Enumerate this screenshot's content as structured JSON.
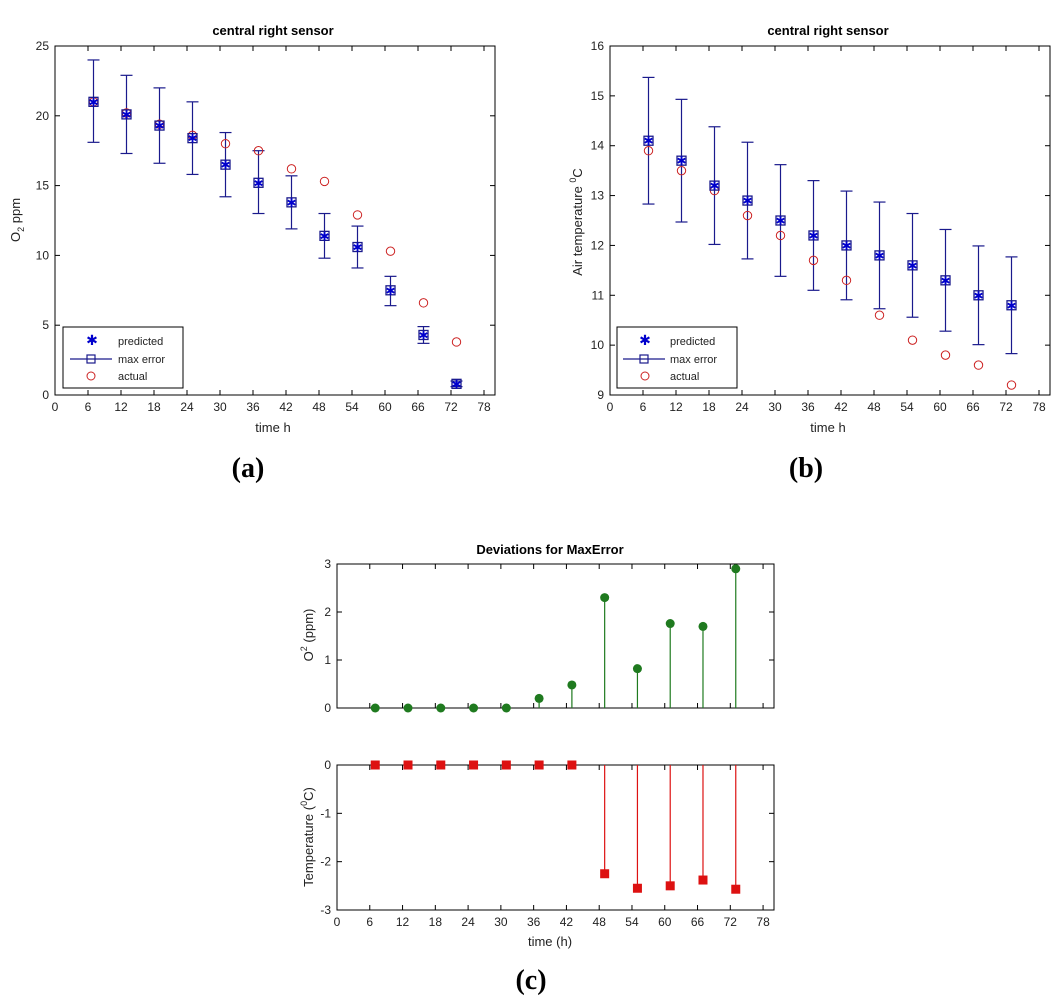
{
  "captions": {
    "a": "(a)",
    "b": "(b)",
    "c": "(c)"
  },
  "legend": {
    "predicted": "predicted",
    "max_error": "max error",
    "actual": "actual"
  },
  "colors": {
    "axis": "#000000",
    "errorbar": "#1a1a8c",
    "predicted": "#0000cc",
    "actual": "#cc2222",
    "stem_o2": "#1f7a1f",
    "stem_temp": "#dd1111"
  },
  "chart_data": [
    {
      "id": "a",
      "type": "scatter",
      "title": "central right sensor",
      "xlabel": "time h",
      "ylabel_main": "O",
      "ylabel_sub": "2",
      "ylabel_tail": " ppm",
      "xlim": [
        0,
        80
      ],
      "ylim": [
        0,
        25
      ],
      "xticks": [
        0,
        6,
        12,
        18,
        24,
        30,
        36,
        42,
        48,
        54,
        60,
        66,
        72,
        78
      ],
      "yticks": [
        0,
        5,
        10,
        15,
        20,
        25
      ],
      "x": [
        7,
        13,
        19,
        25,
        31,
        37,
        43,
        49,
        55,
        61,
        67,
        73
      ],
      "series": [
        {
          "name": "predicted",
          "values": [
            21,
            20.1,
            19.3,
            18.4,
            16.5,
            15.2,
            13.8,
            11.4,
            10.6,
            7.5,
            4.3,
            0.8
          ]
        },
        {
          "name": "max error low",
          "values": [
            18.1,
            17.3,
            16.6,
            15.8,
            14.2,
            13.0,
            11.9,
            9.8,
            9.1,
            6.4,
            3.7,
            0.6
          ]
        },
        {
          "name": "max error high",
          "values": [
            24.0,
            22.9,
            22.0,
            21.0,
            18.8,
            17.5,
            15.7,
            13.0,
            12.1,
            8.5,
            4.9,
            1.0
          ]
        },
        {
          "name": "actual",
          "values": [
            21,
            20.2,
            19.4,
            18.6,
            18.0,
            17.5,
            16.2,
            15.3,
            12.9,
            10.3,
            6.6,
            3.8
          ]
        }
      ],
      "legend_position": "bottom-left"
    },
    {
      "id": "b",
      "type": "scatter",
      "title": "central right sensor",
      "xlabel": "time h",
      "ylabel_main": "Air temperature ",
      "ylabel_sup": "0",
      "ylabel_tail": "C",
      "xlim": [
        0,
        80
      ],
      "ylim": [
        9,
        16
      ],
      "xticks": [
        0,
        6,
        12,
        18,
        24,
        30,
        36,
        42,
        48,
        54,
        60,
        66,
        72,
        78
      ],
      "yticks": [
        9,
        10,
        11,
        12,
        13,
        14,
        15,
        16
      ],
      "x": [
        7,
        13,
        19,
        25,
        31,
        37,
        43,
        49,
        55,
        61,
        67,
        73
      ],
      "series": [
        {
          "name": "predicted",
          "values": [
            14.1,
            13.7,
            13.2,
            12.9,
            12.5,
            12.2,
            12.0,
            11.8,
            11.6,
            11.3,
            11.0,
            10.8
          ]
        },
        {
          "name": "max error low",
          "values": [
            12.83,
            12.47,
            12.02,
            11.73,
            11.38,
            11.1,
            10.91,
            10.73,
            10.56,
            10.28,
            10.01,
            9.83
          ]
        },
        {
          "name": "max error high",
          "values": [
            15.37,
            14.93,
            14.38,
            14.07,
            13.62,
            13.3,
            13.09,
            12.87,
            12.64,
            12.32,
            11.99,
            11.77
          ]
        },
        {
          "name": "actual",
          "values": [
            13.9,
            13.5,
            13.1,
            12.6,
            12.2,
            11.7,
            11.3,
            10.6,
            10.1,
            9.8,
            9.6,
            9.2
          ]
        }
      ],
      "legend_position": "bottom-left"
    },
    {
      "id": "c1",
      "type": "stem",
      "title": "Deviations for MaxError",
      "xlabel": "",
      "ylabel_main": "O",
      "ylabel_sup": "2",
      "ylabel_tail": " (ppm)",
      "xlim": [
        0,
        80
      ],
      "ylim": [
        0,
        3
      ],
      "yticks": [
        0,
        1,
        2,
        3
      ],
      "x": [
        7,
        13,
        19,
        25,
        31,
        37,
        43,
        49,
        55,
        61,
        67,
        73
      ],
      "values": [
        0,
        0,
        0,
        0,
        0,
        0.2,
        0.48,
        2.3,
        0.82,
        1.76,
        1.7,
        2.9
      ]
    },
    {
      "id": "c2",
      "type": "stem",
      "title": "",
      "xlabel": "time (h)",
      "ylabel_main": "Temperature (",
      "ylabel_sup": "0",
      "ylabel_tail": "C)",
      "xlim": [
        0,
        80
      ],
      "ylim": [
        -3,
        0
      ],
      "xticks": [
        0,
        6,
        12,
        18,
        24,
        30,
        36,
        42,
        48,
        54,
        60,
        66,
        72,
        78
      ],
      "yticks": [
        -3,
        -2,
        -1,
        0
      ],
      "x": [
        7,
        13,
        19,
        25,
        31,
        37,
        43,
        49,
        55,
        61,
        67,
        73
      ],
      "values": [
        0,
        0,
        0,
        0,
        0,
        0,
        0,
        -2.25,
        -2.55,
        -2.5,
        -2.38,
        -2.57
      ]
    }
  ]
}
